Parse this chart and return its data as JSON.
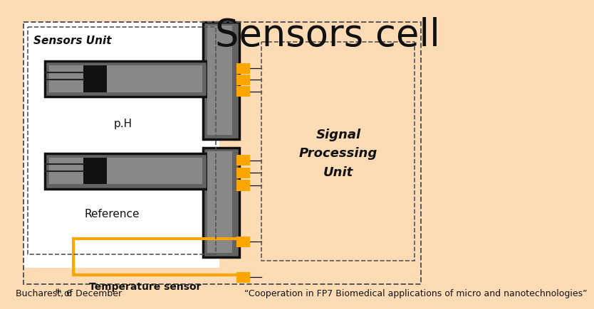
{
  "title": "Sensors cell",
  "title_fontsize": 38,
  "bg_outer": "#FDDCB5",
  "bg_white": "#FFFFFF",
  "gray_dark": "#636363",
  "gray_medium": "#888888",
  "black": "#111111",
  "orange": "#FFA500",
  "dash_color": "#555555",
  "sensors_unit_label": "Sensors Unit",
  "signal_unit_label": "Signal\nProcessing\nUnit",
  "ph_label": "p.H",
  "ref_label": "Reference",
  "temp_label": "Temperature sensor",
  "footer_left": "Bucharest, 6",
  "footer_left_sup": "th",
  "footer_left2": " of December",
  "footer_right": "“Cooperation in FP7 Biomedical applications of micro and nanotechnologies”",
  "footer_fontsize": 9
}
